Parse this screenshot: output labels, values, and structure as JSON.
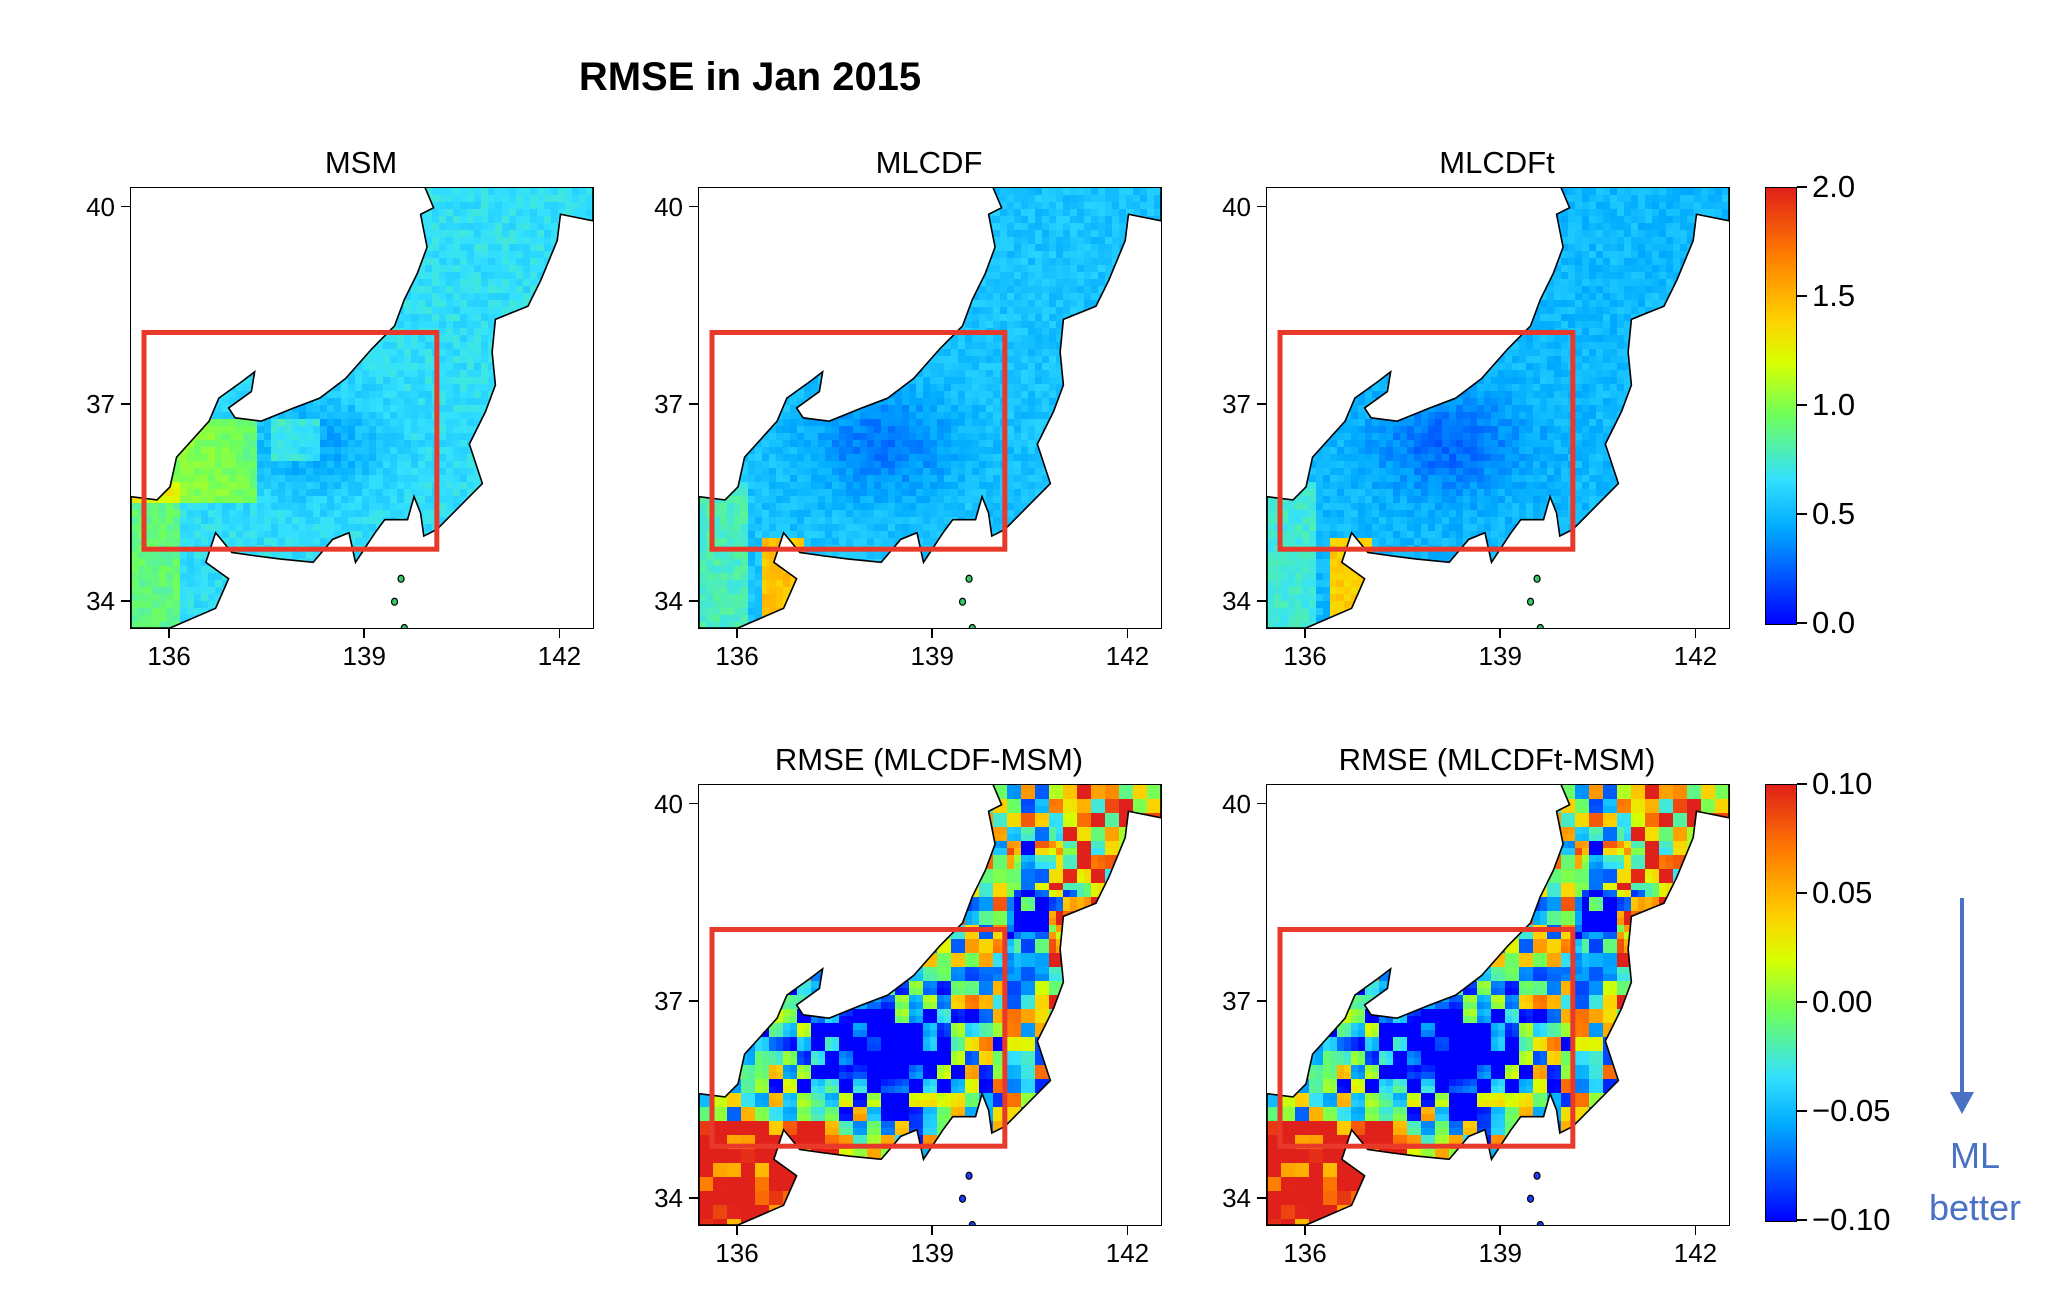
{
  "title": "RMSE in Jan 2015",
  "panels": [
    {
      "id": "msm",
      "title": "MSM",
      "variant": "rmse-msm"
    },
    {
      "id": "mlcdf",
      "title": "MLCDF",
      "variant": "rmse-mlcdf"
    },
    {
      "id": "mlcdft",
      "title": "MLCDFt",
      "variant": "rmse-mlcdft"
    },
    {
      "id": "diff-mlcdf",
      "title": "RMSE (MLCDF-MSM)",
      "variant": "diff"
    },
    {
      "id": "diff-mlcdft",
      "title": "RMSE (MLCDFt-MSM)",
      "variant": "diff"
    }
  ],
  "axes": {
    "x_ticks": [
      "136",
      "139",
      "142"
    ],
    "y_ticks": [
      "40",
      "37",
      "34"
    ],
    "lon_range": [
      135.4,
      142.5
    ],
    "lat_range": [
      33.6,
      40.3
    ]
  },
  "highlight_box": {
    "lon": [
      135.6,
      140.1
    ],
    "lat": [
      34.8,
      38.1
    ],
    "color": "#e8392a"
  },
  "colorbars": {
    "rmse": {
      "ticks": [
        "2.0",
        "1.5",
        "1.0",
        "0.5",
        "0.0"
      ],
      "range": [
        0.0,
        2.0
      ]
    },
    "diff": {
      "ticks": [
        "0.10",
        "0.05",
        "0.00",
        "−0.05",
        "−0.10"
      ],
      "range": [
        -0.1,
        0.1
      ]
    }
  },
  "annotation": {
    "line1": "ML",
    "line2": "better",
    "color": "#4a72c4",
    "icon": "down-arrow-icon"
  }
}
